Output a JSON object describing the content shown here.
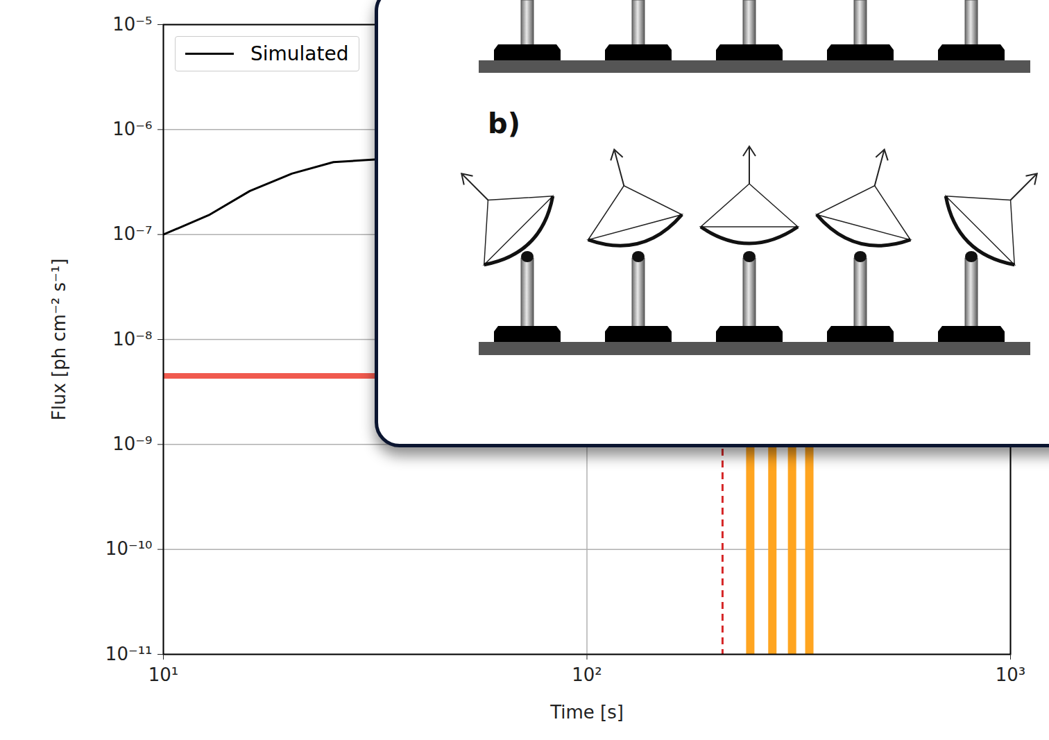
{
  "chart_data": {
    "type": "line",
    "x": [
      10,
      12.8,
      16,
      20.1,
      25.2,
      32
    ],
    "series": [
      {
        "name": "Simulated",
        "color": "#000000",
        "line_style": "solid",
        "values": [
          1e-07,
          1.53e-07,
          2.6e-07,
          3.8e-07,
          4.9e-07,
          5.2e-07
        ]
      }
    ],
    "x_label": "Time [s]",
    "y_label": "Flux [ph cm⁻² s⁻¹]",
    "log": true,
    "grid": true,
    "legend": "upper left",
    "xlim": [
      10,
      1000
    ],
    "xticks": [
      {
        "value": 10,
        "label": "10¹"
      },
      {
        "value": 100,
        "label": "10²"
      },
      {
        "value": 1000,
        "label": "10³"
      }
    ],
    "ylim": [
      1e-11,
      1e-05
    ],
    "yticks": [
      {
        "value": 1e-11,
        "label": "10⁻¹¹"
      },
      {
        "value": 1e-10,
        "label": "10⁻¹⁰"
      },
      {
        "value": 1e-09,
        "label": "10⁻⁹"
      },
      {
        "value": 1e-08,
        "label": "10⁻⁸"
      },
      {
        "value": 1e-07,
        "label": "10⁻⁷"
      },
      {
        "value": 1e-06,
        "label": "10⁻⁶"
      },
      {
        "value": 1e-05,
        "label": "10⁻⁵"
      }
    ],
    "hlines": [
      {
        "value": 4.5e-09,
        "color": "#f05a4e",
        "line_style": "solid"
      }
    ],
    "vlines": [
      {
        "value": 209,
        "color": "#d62728",
        "line_style": "dashed"
      },
      {
        "value": 243,
        "color": "#ffa520",
        "line_style": "solid"
      },
      {
        "value": 274,
        "color": "#ffa520",
        "line_style": "solid"
      },
      {
        "value": 305,
        "color": "#ffa520",
        "line_style": "solid"
      },
      {
        "value": 335,
        "color": "#ffa520",
        "line_style": "solid"
      }
    ],
    "annotations": [
      "b)"
    ]
  }
}
